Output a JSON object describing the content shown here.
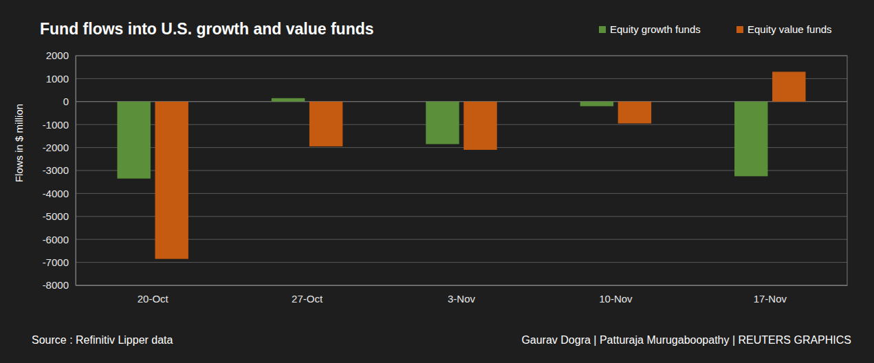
{
  "chart_data": {
    "type": "bar",
    "title": "Fund flows into U.S. growth and value funds",
    "y_label": "Flows in $ million",
    "categories": [
      "20-Oct",
      "27-Oct",
      "3-Nov",
      "10-Nov",
      "17-Nov"
    ],
    "series": [
      {
        "name": "Equity growth funds",
        "color": "#5b8f3a",
        "values": [
          -3350,
          150,
          -1850,
          -200,
          -3250
        ]
      },
      {
        "name": "Equity value funds",
        "color": "#c55a11",
        "values": [
          -6850,
          -1950,
          -2100,
          -950,
          1300
        ]
      }
    ],
    "ylim": [
      -8000,
      2000
    ],
    "yticks": [
      -8000,
      -7000,
      -6000,
      -5000,
      -4000,
      -3000,
      -2000,
      -1000,
      0,
      1000,
      2000
    ],
    "grid": true,
    "legend": "top-right",
    "annotations": [
      "Source : Refinitiv Lipper data",
      "Gaurav Dogra | Patturaja Murugaboopathy | REUTERS GRAPHICS"
    ]
  }
}
